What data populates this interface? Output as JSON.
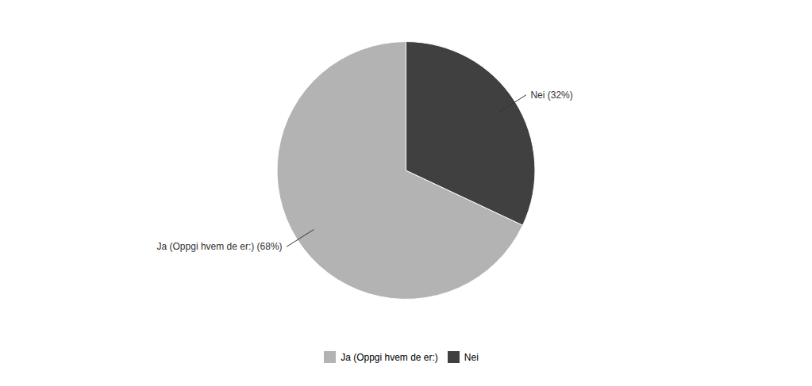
{
  "chart_data": {
    "type": "pie",
    "categories": [
      "Ja (Oppgi hvem de er:)",
      "Nei"
    ],
    "values": [
      68,
      32
    ],
    "colors": [
      "#b3b3b3",
      "#404040"
    ],
    "annotations": [
      "Ja (Oppgi hvem de er:) (68%)",
      "Nei (32%)"
    ],
    "legend": "bottom"
  }
}
